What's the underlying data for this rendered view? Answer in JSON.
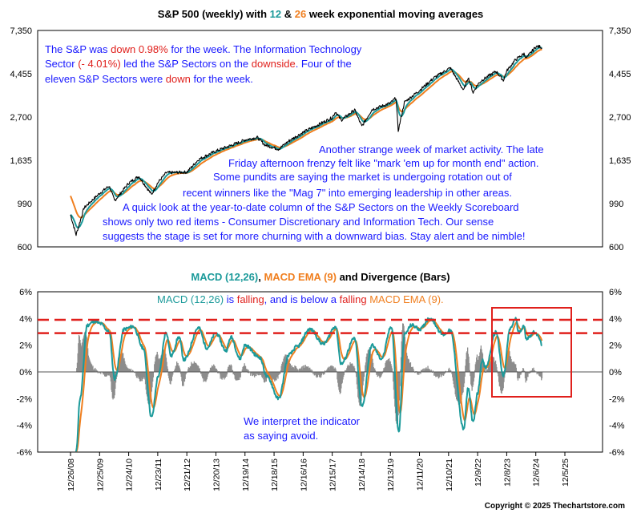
{
  "colors": {
    "ema12": "#1b9a9a",
    "ema26": "#f07f1f",
    "price": "#000000",
    "macd": "#1b9a9a",
    "signal": "#f07f1f",
    "divergence": "#8c8c8c",
    "alert": "#e0201c",
    "annotation": "#1a1aff"
  },
  "chart_data": [
    {
      "type": "line",
      "title": {
        "part1": "S&P 500 (weekly) with ",
        "ema_fast": "12",
        "amp": " & ",
        "ema_slow": "26",
        "part2": " week exponential moving averages"
      },
      "y_scale": "log",
      "ylim": [
        600,
        7350
      ],
      "y_ticks": [
        "7,350",
        "4,455",
        "2,700",
        "1,635",
        "990",
        "600"
      ],
      "y_tick_values": [
        7350,
        4455,
        2700,
        1635,
        990,
        600
      ],
      "series": [
        {
          "name": "S&P 500",
          "x": [
            "2008-12-26",
            "2009-03-06",
            "2009-06-12",
            "2009-12-25",
            "2010-04-23",
            "2010-07-02",
            "2010-12-24",
            "2011-04-29",
            "2011-10-07",
            "2011-12-23",
            "2012-04-06",
            "2012-12-21",
            "2013-05-17",
            "2013-12-20",
            "2014-09-19",
            "2014-12-19",
            "2015-05-22",
            "2015-08-28",
            "2016-02-12",
            "2016-06-24",
            "2016-12-16",
            "2017-12-15",
            "2018-01-26",
            "2018-04-06",
            "2018-09-21",
            "2018-12-21",
            "2019-04-26",
            "2019-12-13",
            "2020-02-21",
            "2020-03-20",
            "2020-06-05",
            "2020-12-11",
            "2021-06-11",
            "2021-12-31",
            "2022-06-17",
            "2022-08-12",
            "2022-10-14",
            "2022-12-09",
            "2023-02-03",
            "2023-07-28",
            "2023-10-27",
            "2023-12-08",
            "2024-03-29",
            "2024-07-12",
            "2024-08-09",
            "2024-12-06",
            "2025-01-24",
            "2025-02-21"
          ],
          "values": [
            870,
            690,
            940,
            1115,
            1215,
            1025,
            1255,
            1360,
            1100,
            1260,
            1415,
            1425,
            1650,
            1820,
            2000,
            2070,
            2130,
            1950,
            1860,
            2050,
            2260,
            2680,
            2870,
            2600,
            2930,
            2420,
            2940,
            3170,
            3370,
            2300,
            3200,
            3670,
            4250,
            4770,
            3670,
            4280,
            3580,
            3930,
            4140,
            4580,
            4120,
            4600,
            5250,
            5620,
            5340,
            6090,
            6100,
            6010
          ]
        },
        {
          "name": "12 week EMA",
          "values": []
        },
        {
          "name": "26 week EMA",
          "values": []
        }
      ]
    },
    {
      "type": "line",
      "title": {
        "macd": "MACD (12,26)",
        "sep": ", ",
        "signal": "MACD EMA (9)",
        "rest": " and Divergence (Bars)"
      },
      "ylim": [
        -6,
        6
      ],
      "y_ticks": [
        "6%",
        "4%",
        "2%",
        "0%",
        "-2%",
        "-4%",
        "-6%"
      ],
      "y_tick_values": [
        6,
        4,
        2,
        0,
        -2,
        -4,
        -6
      ],
      "x_ticks": [
        "12/26/08",
        "12/25/09",
        "12/24/10",
        "12/23/11",
        "12/21/12",
        "12/20/13",
        "12/19/14",
        "12/18/15",
        "12/16/16",
        "12/15/17",
        "12/14/18",
        "12/13/19",
        "12/11/20",
        "12/10/21",
        "12/9/22",
        "12/8/23",
        "12/6/24",
        "12/5/25"
      ],
      "reference_lines": [
        3.9,
        2.9
      ],
      "series": [
        {
          "name": "MACD (12,26)",
          "x": [
            "2009-03-06",
            "2009-04-24",
            "2009-07-24",
            "2009-10-23",
            "2010-01-08",
            "2010-04-23",
            "2010-07-02",
            "2010-10-29",
            "2011-02-18",
            "2011-06-24",
            "2011-10-07",
            "2011-12-30",
            "2012-04-06",
            "2012-06-08",
            "2012-09-14",
            "2012-11-16",
            "2013-05-17",
            "2013-08-30",
            "2013-12-20",
            "2014-04-25",
            "2014-06-27",
            "2014-10-17",
            "2014-12-19",
            "2015-06-19",
            "2015-09-25",
            "2016-02-12",
            "2016-06-24",
            "2016-09-30",
            "2017-03-10",
            "2017-08-25",
            "2018-01-26",
            "2018-04-06",
            "2018-09-21",
            "2018-12-21",
            "2019-04-26",
            "2019-08-23",
            "2019-12-27",
            "2020-03-27",
            "2020-06-05",
            "2020-09-04",
            "2020-12-18",
            "2021-04-16",
            "2021-10-08",
            "2021-12-31",
            "2022-06-17",
            "2022-08-12",
            "2022-10-14",
            "2022-12-09",
            "2023-02-03",
            "2023-03-17",
            "2023-07-28",
            "2023-10-27",
            "2024-01-19",
            "2024-03-29",
            "2024-05-03",
            "2024-07-12",
            "2024-08-09",
            "2024-11-29",
            "2025-01-10",
            "2025-02-21"
          ],
          "values": [
            -6.0,
            -2.0,
            3.5,
            3.8,
            3.6,
            3.0,
            -0.5,
            3.2,
            3.4,
            1.8,
            -3.4,
            -0.3,
            3.0,
            1.2,
            2.6,
            0.9,
            3.3,
            1.8,
            2.9,
            1.6,
            2.6,
            1.0,
            2.0,
            1.1,
            -0.4,
            -2.0,
            1.3,
            1.9,
            3.2,
            2.1,
            3.4,
            0.6,
            2.5,
            -2.6,
            2.0,
            1.0,
            3.4,
            -4.5,
            2.8,
            3.5,
            3.2,
            4.0,
            2.8,
            3.1,
            -4.3,
            -1.2,
            -3.8,
            -1.6,
            0.9,
            0.3,
            3.0,
            -0.3,
            3.2,
            4.0,
            3.0,
            3.4,
            2.5,
            3.0,
            2.6,
            2.0
          ]
        },
        {
          "name": "MACD EMA (9)",
          "values": []
        },
        {
          "name": "Divergence (Bars)",
          "values": []
        }
      ]
    }
  ],
  "annotations": {
    "top_left": {
      "line1": {
        "a": "The S&P was ",
        "b": "down 0.98%",
        "c": " for the week. The Information Technology"
      },
      "line2": {
        "a": "Sector ",
        "b": "(- 4.01%)",
        "c": " led the S&P Sectors on the ",
        "d": "downside",
        "e": ".  Four of the"
      },
      "line3": {
        "a": "eleven S&P Sectors were ",
        "b": "down",
        "c": " for the week."
      }
    },
    "commentary": [
      "Another strange week of market activity.  The late",
      "Friday afternoon frenzy felt like \"mark 'em up for month end\" action.",
      "Some pundits are saying the market is undergoing rotation out of",
      "recent winners like the \"Mag 7\" into emerging leadership in other areas.",
      "A quick look at the year-to-date column of the S&P Sectors on the Weekly Scoreboard",
      "shows only two red items - Consumer Discretionary and Information Tech.  Our sense",
      "suggests the stage is set for more churning with a downward bias. Stay alert and be nimble!"
    ],
    "macd_status": {
      "a": "MACD (12,26)",
      "b": " is ",
      "c": "falling",
      "d": ", and is below a ",
      "e": "falling",
      "f": " MACD EMA (9)."
    },
    "interpretation": [
      "We interpret the indicator",
      "as saying avoid."
    ]
  },
  "copyright": "Copyright © 2025 Thechartstore.com"
}
